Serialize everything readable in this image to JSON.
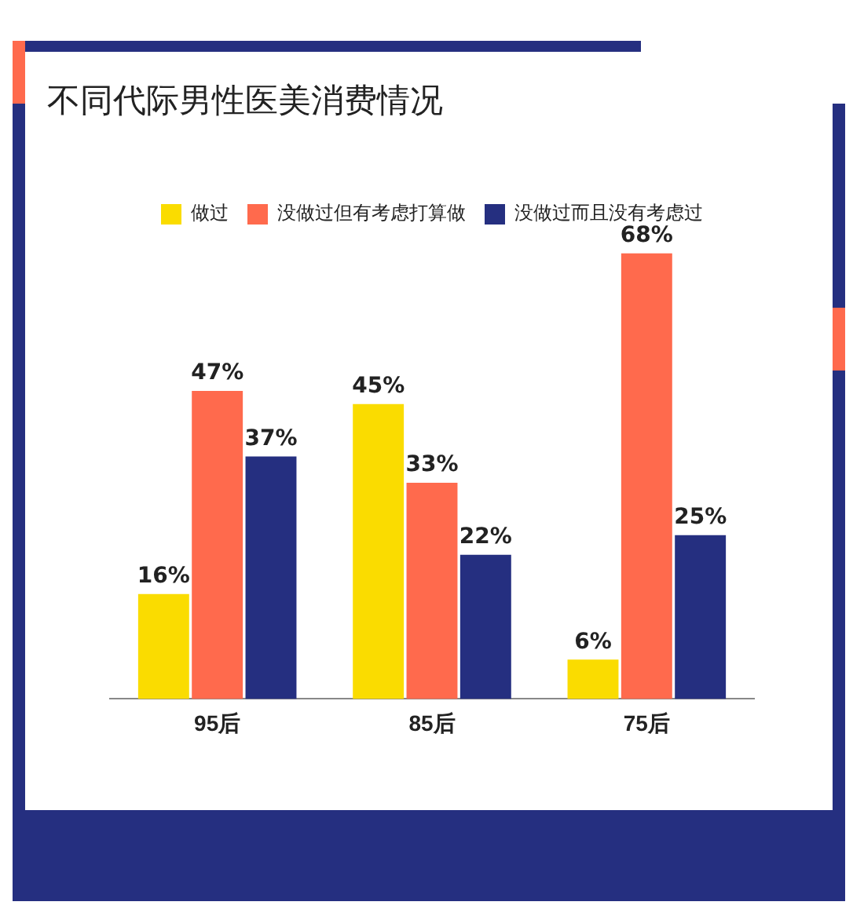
{
  "chart_data": {
    "type": "bar",
    "title": "不同代际男性医美消费情况",
    "categories": [
      "95后",
      "85后",
      "75后"
    ],
    "series": [
      {
        "name": "做过",
        "color": "#fadc00",
        "values": [
          16,
          45,
          6
        ],
        "value_labels": [
          "16%",
          "45%",
          "6%"
        ]
      },
      {
        "name": "没做过但有考虑打算做",
        "color": "#ff6a4d",
        "values": [
          47,
          33,
          68
        ],
        "value_labels": [
          "47%",
          "33%",
          "68%"
        ]
      },
      {
        "name": "没做过而且没有考虑过",
        "color": "#252f80",
        "values": [
          37,
          22,
          25
        ],
        "value_labels": [
          "37%",
          "22%",
          "25%"
        ]
      }
    ],
    "legend": "top",
    "grid": false,
    "tick_labels": "x"
  }
}
